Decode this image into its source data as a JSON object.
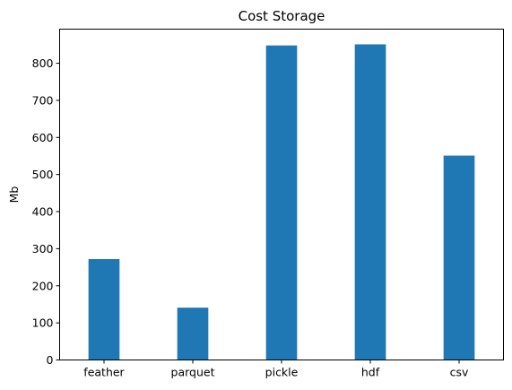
{
  "chart_data": {
    "type": "bar",
    "title": "Cost Storage",
    "xlabel": "",
    "ylabel": "Mb",
    "categories": [
      "feather",
      "parquet",
      "pickle",
      "hdf",
      "csv"
    ],
    "values": [
      272,
      141,
      848,
      851,
      551
    ],
    "ylim": [
      0,
      892
    ],
    "yticks": [
      0,
      100,
      200,
      300,
      400,
      500,
      600,
      700,
      800
    ],
    "grid": false,
    "bar_color": "#1f77b4"
  }
}
